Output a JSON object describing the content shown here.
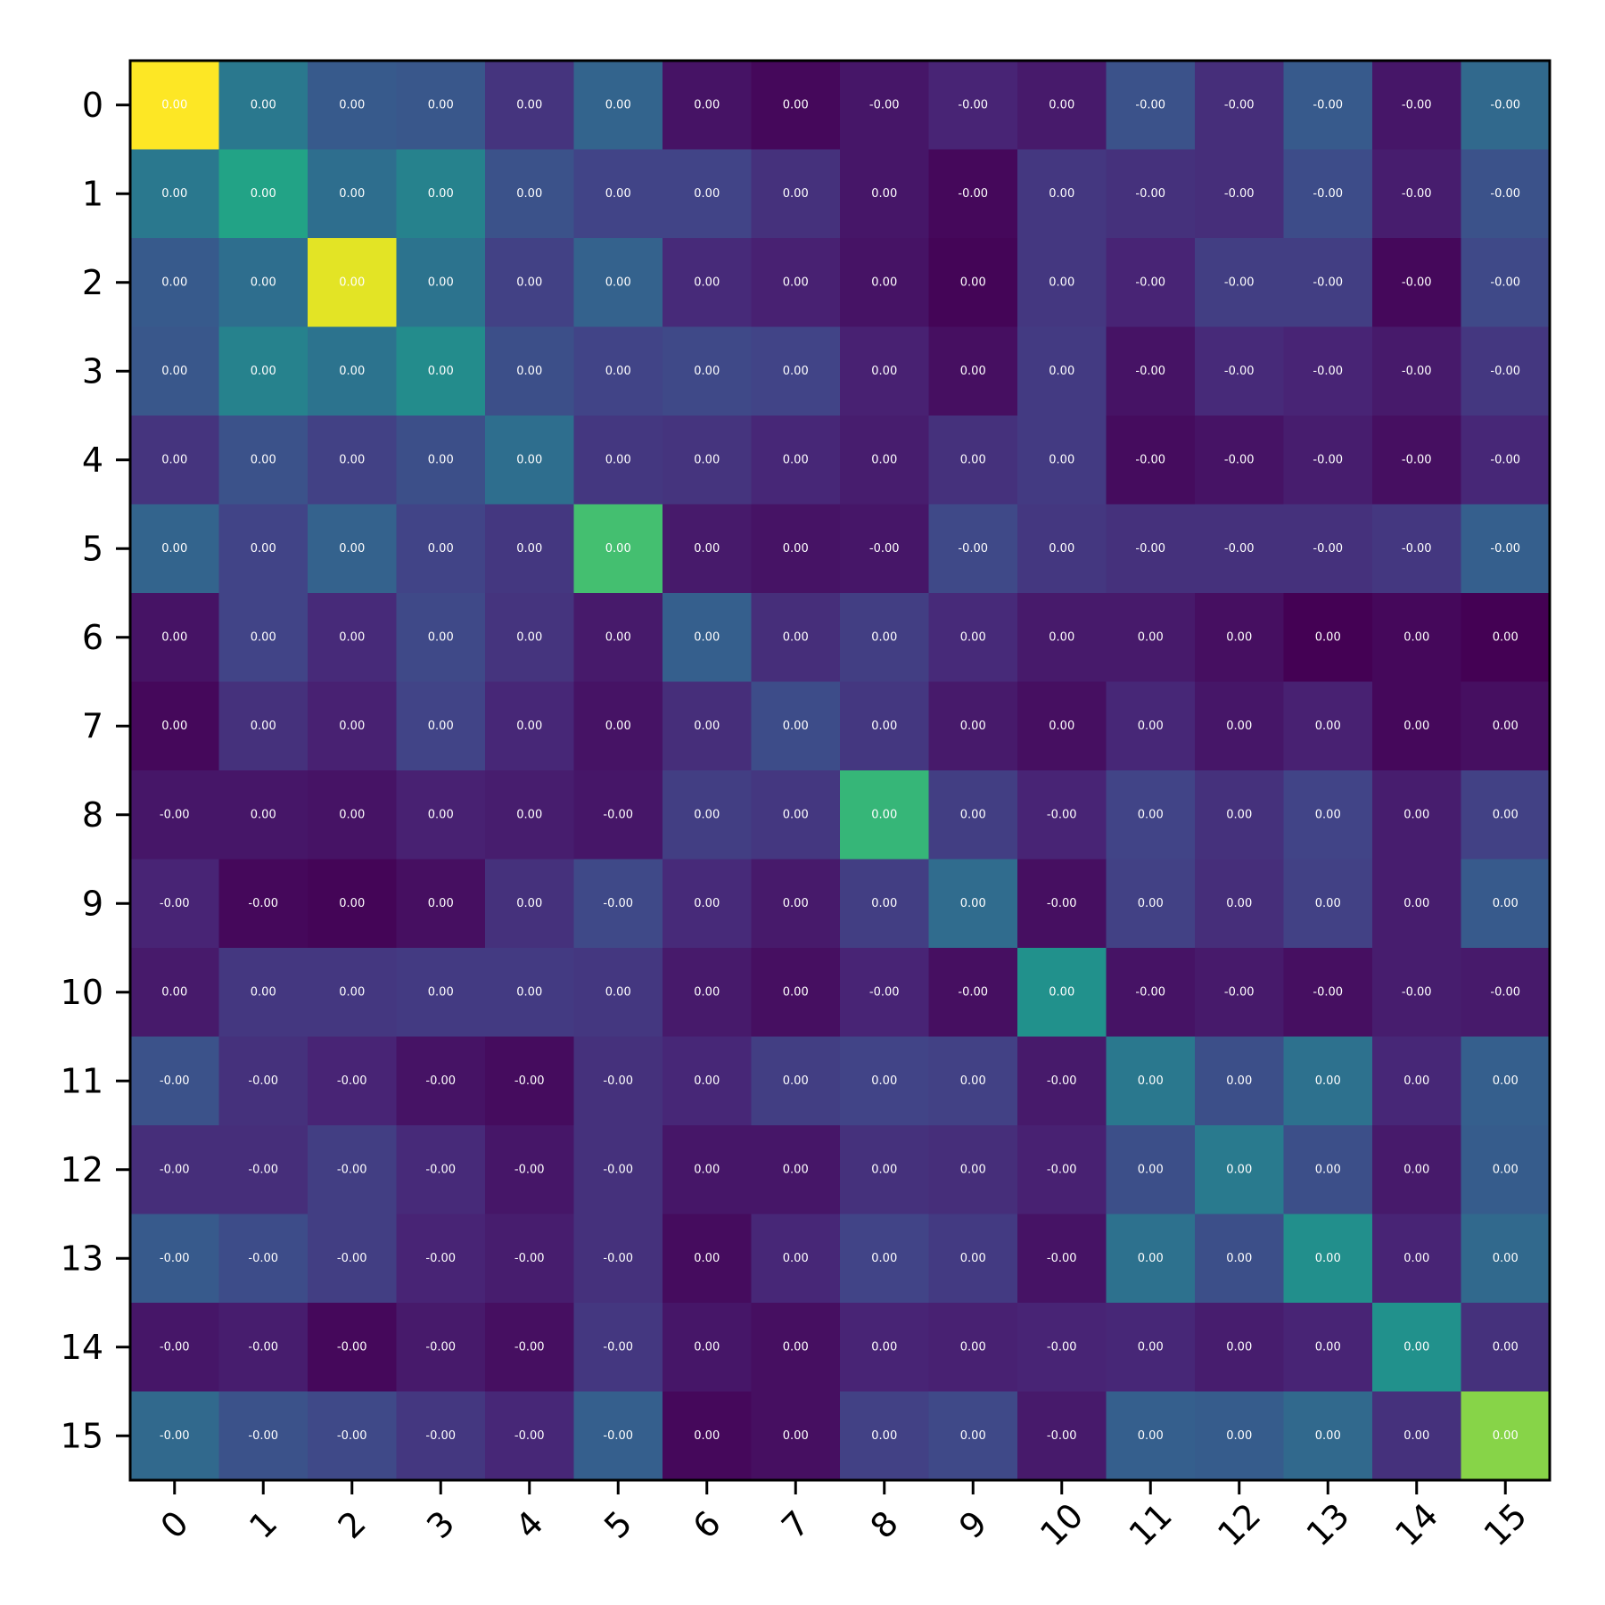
{
  "chart_data": {
    "type": "heatmap",
    "title": "",
    "xlabel": "",
    "ylabel": "",
    "colormap": "viridis",
    "grid": false,
    "x_ticks": [
      "0",
      "1",
      "2",
      "3",
      "4",
      "5",
      "6",
      "7",
      "8",
      "9",
      "10",
      "11",
      "12",
      "13",
      "14",
      "15"
    ],
    "y_ticks": [
      "0",
      "1",
      "2",
      "3",
      "4",
      "5",
      "6",
      "7",
      "8",
      "9",
      "10",
      "11",
      "12",
      "13",
      "14",
      "15"
    ],
    "labels": [
      [
        "0.00",
        "0.00",
        "0.00",
        "0.00",
        "0.00",
        "0.00",
        "0.00",
        "0.00",
        "-0.00",
        "-0.00",
        "0.00",
        "-0.00",
        "-0.00",
        "-0.00",
        "-0.00",
        "-0.00"
      ],
      [
        "0.00",
        "0.00",
        "0.00",
        "0.00",
        "0.00",
        "0.00",
        "0.00",
        "0.00",
        "0.00",
        "-0.00",
        "0.00",
        "-0.00",
        "-0.00",
        "-0.00",
        "-0.00",
        "-0.00"
      ],
      [
        "0.00",
        "0.00",
        "0.00",
        "0.00",
        "0.00",
        "0.00",
        "0.00",
        "0.00",
        "0.00",
        "0.00",
        "0.00",
        "-0.00",
        "-0.00",
        "-0.00",
        "-0.00",
        "-0.00"
      ],
      [
        "0.00",
        "0.00",
        "0.00",
        "0.00",
        "0.00",
        "0.00",
        "0.00",
        "0.00",
        "0.00",
        "0.00",
        "0.00",
        "-0.00",
        "-0.00",
        "-0.00",
        "-0.00",
        "-0.00"
      ],
      [
        "0.00",
        "0.00",
        "0.00",
        "0.00",
        "0.00",
        "0.00",
        "0.00",
        "0.00",
        "0.00",
        "0.00",
        "0.00",
        "-0.00",
        "-0.00",
        "-0.00",
        "-0.00",
        "-0.00"
      ],
      [
        "0.00",
        "0.00",
        "0.00",
        "0.00",
        "0.00",
        "0.00",
        "0.00",
        "0.00",
        "-0.00",
        "-0.00",
        "0.00",
        "-0.00",
        "-0.00",
        "-0.00",
        "-0.00",
        "-0.00"
      ],
      [
        "0.00",
        "0.00",
        "0.00",
        "0.00",
        "0.00",
        "0.00",
        "0.00",
        "0.00",
        "0.00",
        "0.00",
        "0.00",
        "0.00",
        "0.00",
        "0.00",
        "0.00",
        "0.00"
      ],
      [
        "0.00",
        "0.00",
        "0.00",
        "0.00",
        "0.00",
        "0.00",
        "0.00",
        "0.00",
        "0.00",
        "0.00",
        "0.00",
        "0.00",
        "0.00",
        "0.00",
        "0.00",
        "0.00"
      ],
      [
        "-0.00",
        "0.00",
        "0.00",
        "0.00",
        "0.00",
        "-0.00",
        "0.00",
        "0.00",
        "0.00",
        "0.00",
        "-0.00",
        "0.00",
        "0.00",
        "0.00",
        "0.00",
        "0.00"
      ],
      [
        "-0.00",
        "-0.00",
        "0.00",
        "0.00",
        "0.00",
        "-0.00",
        "0.00",
        "0.00",
        "0.00",
        "0.00",
        "-0.00",
        "0.00",
        "0.00",
        "0.00",
        "0.00",
        "0.00"
      ],
      [
        "0.00",
        "0.00",
        "0.00",
        "0.00",
        "0.00",
        "0.00",
        "0.00",
        "0.00",
        "-0.00",
        "-0.00",
        "0.00",
        "-0.00",
        "-0.00",
        "-0.00",
        "-0.00",
        "-0.00"
      ],
      [
        "-0.00",
        "-0.00",
        "-0.00",
        "-0.00",
        "-0.00",
        "-0.00",
        "0.00",
        "0.00",
        "0.00",
        "0.00",
        "-0.00",
        "0.00",
        "0.00",
        "0.00",
        "0.00",
        "0.00"
      ],
      [
        "-0.00",
        "-0.00",
        "-0.00",
        "-0.00",
        "-0.00",
        "-0.00",
        "0.00",
        "0.00",
        "0.00",
        "0.00",
        "-0.00",
        "0.00",
        "0.00",
        "0.00",
        "0.00",
        "0.00"
      ],
      [
        "-0.00",
        "-0.00",
        "-0.00",
        "-0.00",
        "-0.00",
        "-0.00",
        "0.00",
        "0.00",
        "0.00",
        "0.00",
        "-0.00",
        "0.00",
        "0.00",
        "0.00",
        "0.00",
        "0.00"
      ],
      [
        "-0.00",
        "-0.00",
        "-0.00",
        "-0.00",
        "-0.00",
        "-0.00",
        "0.00",
        "0.00",
        "0.00",
        "0.00",
        "-0.00",
        "0.00",
        "0.00",
        "0.00",
        "0.00",
        "0.00"
      ],
      [
        "-0.00",
        "-0.00",
        "-0.00",
        "-0.00",
        "-0.00",
        "-0.00",
        "0.00",
        "0.00",
        "0.00",
        "0.00",
        "-0.00",
        "0.00",
        "0.00",
        "0.00",
        "0.00",
        "0.00"
      ]
    ],
    "color_levels": [
      [
        1.0,
        0.4,
        0.28,
        0.27,
        0.15,
        0.32,
        0.05,
        0.02,
        0.06,
        0.1,
        0.07,
        0.25,
        0.13,
        0.28,
        0.06,
        0.34
      ],
      [
        0.4,
        0.58,
        0.36,
        0.44,
        0.25,
        0.2,
        0.2,
        0.14,
        0.06,
        0.02,
        0.16,
        0.14,
        0.13,
        0.23,
        0.08,
        0.25
      ],
      [
        0.28,
        0.36,
        0.96,
        0.38,
        0.19,
        0.31,
        0.12,
        0.09,
        0.05,
        0.01,
        0.16,
        0.1,
        0.18,
        0.18,
        0.02,
        0.22
      ],
      [
        0.27,
        0.44,
        0.38,
        0.48,
        0.24,
        0.2,
        0.22,
        0.2,
        0.09,
        0.04,
        0.17,
        0.05,
        0.12,
        0.1,
        0.07,
        0.16
      ],
      [
        0.15,
        0.25,
        0.19,
        0.24,
        0.36,
        0.16,
        0.15,
        0.11,
        0.08,
        0.14,
        0.17,
        0.03,
        0.05,
        0.08,
        0.04,
        0.11
      ],
      [
        0.32,
        0.2,
        0.31,
        0.2,
        0.16,
        0.7,
        0.07,
        0.05,
        0.06,
        0.22,
        0.16,
        0.14,
        0.14,
        0.14,
        0.16,
        0.3
      ],
      [
        0.05,
        0.2,
        0.12,
        0.22,
        0.15,
        0.07,
        0.3,
        0.13,
        0.18,
        0.12,
        0.07,
        0.07,
        0.04,
        0.0,
        0.02,
        0.0
      ],
      [
        0.02,
        0.14,
        0.09,
        0.2,
        0.11,
        0.05,
        0.13,
        0.23,
        0.16,
        0.07,
        0.04,
        0.11,
        0.06,
        0.09,
        0.02,
        0.04
      ],
      [
        0.06,
        0.06,
        0.05,
        0.09,
        0.08,
        0.06,
        0.18,
        0.16,
        0.66,
        0.18,
        0.1,
        0.2,
        0.14,
        0.2,
        0.08,
        0.19
      ],
      [
        0.1,
        0.02,
        0.01,
        0.04,
        0.14,
        0.22,
        0.12,
        0.07,
        0.18,
        0.35,
        0.04,
        0.19,
        0.13,
        0.19,
        0.08,
        0.28
      ],
      [
        0.07,
        0.16,
        0.16,
        0.17,
        0.17,
        0.16,
        0.07,
        0.04,
        0.1,
        0.04,
        0.5,
        0.05,
        0.07,
        0.04,
        0.08,
        0.07
      ],
      [
        0.25,
        0.14,
        0.1,
        0.05,
        0.03,
        0.14,
        0.11,
        0.18,
        0.2,
        0.19,
        0.07,
        0.4,
        0.24,
        0.37,
        0.11,
        0.3
      ],
      [
        0.13,
        0.13,
        0.18,
        0.12,
        0.06,
        0.14,
        0.06,
        0.06,
        0.14,
        0.13,
        0.09,
        0.24,
        0.41,
        0.24,
        0.07,
        0.29
      ],
      [
        0.28,
        0.23,
        0.18,
        0.1,
        0.08,
        0.14,
        0.03,
        0.11,
        0.2,
        0.17,
        0.05,
        0.37,
        0.24,
        0.49,
        0.1,
        0.34
      ],
      [
        0.06,
        0.08,
        0.02,
        0.07,
        0.04,
        0.16,
        0.06,
        0.04,
        0.1,
        0.09,
        0.1,
        0.11,
        0.08,
        0.1,
        0.5,
        0.14
      ],
      [
        0.34,
        0.25,
        0.22,
        0.16,
        0.11,
        0.3,
        0.02,
        0.04,
        0.19,
        0.22,
        0.07,
        0.3,
        0.29,
        0.34,
        0.14,
        0.82
      ]
    ]
  }
}
